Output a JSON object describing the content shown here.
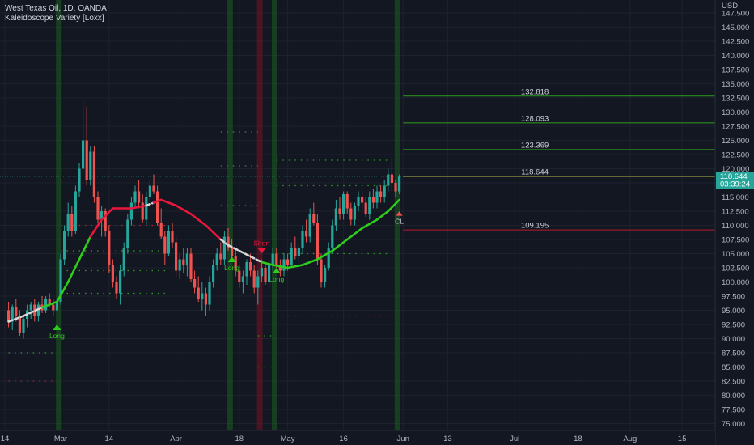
{
  "header": {
    "title": "West Texas Oil, 1D, OANDA",
    "indicator": "Kaleidoscope Variety [Loxx]"
  },
  "colors": {
    "background": "#131722",
    "up": "#26a69a",
    "down": "#ef5350",
    "ma_up": "#2ecc1b",
    "ma_down": "#e8173c",
    "ma_neutral": "#d9d9d9",
    "level_green": "#2e9e1f",
    "level_red": "#b71c2c",
    "band_green": "#1b5e20",
    "band_red": "#7a1325",
    "price_tag": "#26a69a"
  },
  "chart_data": {
    "type": "candlestick",
    "currency": "USD",
    "y_ticks": [
      "147.500",
      "145.000",
      "142.500",
      "140.000",
      "137.500",
      "135.000",
      "132.500",
      "130.000",
      "127.500",
      "125.000",
      "122.500",
      "120.000",
      "117.500",
      "115.000",
      "112.500",
      "110.000",
      "107.500",
      "105.000",
      "102.500",
      "100.000",
      "97.500",
      "95.000",
      "92.500",
      "90.000",
      "87.500",
      "85.000",
      "82.500",
      "80.000",
      "77.500",
      "75.000"
    ],
    "ylim": [
      73.5,
      149.5
    ],
    "x_ticks": [
      {
        "label": "14",
        "d": 0
      },
      {
        "label": "Mar",
        "d": 15
      },
      {
        "label": "14",
        "d": 28
      },
      {
        "label": "Apr",
        "d": 46
      },
      {
        "label": "18",
        "d": 63
      },
      {
        "label": "May",
        "d": 76
      },
      {
        "label": "16",
        "d": 91
      },
      {
        "label": "Jun",
        "d": 107
      },
      {
        "label": "13",
        "d": 119
      },
      {
        "label": "Jul",
        "d": 137
      },
      {
        "label": "18",
        "d": 154
      },
      {
        "label": "Aug",
        "d": 168
      },
      {
        "label": "15",
        "d": 182
      }
    ],
    "xlim": [
      0,
      190
    ],
    "candles": [
      [
        1,
        95,
        96.5,
        92,
        93
      ],
      [
        2,
        93,
        96,
        91.5,
        95.5
      ],
      [
        3,
        95.5,
        97,
        93,
        94
      ],
      [
        4,
        94,
        95,
        90.5,
        91
      ],
      [
        5,
        91,
        94,
        90,
        93.5
      ],
      [
        6,
        93.5,
        96,
        92,
        95
      ],
      [
        7,
        95,
        96.5,
        93.5,
        96
      ],
      [
        8,
        96,
        97,
        93,
        94
      ],
      [
        9,
        94,
        96.5,
        93,
        96
      ],
      [
        10,
        96,
        97.5,
        94.5,
        95
      ],
      [
        11,
        95,
        97.5,
        94.5,
        97
      ],
      [
        12,
        97,
        98,
        95.5,
        96
      ],
      [
        13,
        96,
        97,
        94,
        95
      ],
      [
        14,
        95,
        97,
        94.5,
        96.5
      ],
      [
        15,
        96.5,
        105,
        96,
        104
      ],
      [
        16,
        104,
        110,
        103,
        109
      ],
      [
        17,
        109,
        114,
        108,
        112
      ],
      [
        18,
        112,
        113.5,
        108,
        109
      ],
      [
        19,
        109,
        117,
        108.5,
        116
      ],
      [
        20,
        116,
        121,
        115,
        120
      ],
      [
        21,
        120,
        132,
        119,
        125
      ],
      [
        22,
        125,
        131,
        117,
        118
      ],
      [
        23,
        118,
        124,
        117,
        123
      ],
      [
        24,
        123,
        124,
        114,
        115
      ],
      [
        25,
        115,
        116,
        110.5,
        111
      ],
      [
        26,
        111,
        113.5,
        108,
        112.5
      ],
      [
        27,
        112.5,
        113,
        108,
        109
      ],
      [
        28,
        109,
        110,
        101.5,
        103
      ],
      [
        29,
        103,
        104,
        99,
        100
      ],
      [
        30,
        100,
        101,
        97,
        98
      ],
      [
        31,
        98,
        103,
        96,
        102
      ],
      [
        32,
        102,
        107,
        101,
        106
      ],
      [
        33,
        106,
        112,
        105,
        111
      ],
      [
        34,
        111,
        115,
        110,
        114
      ],
      [
        35,
        114,
        117,
        113,
        116
      ],
      [
        36,
        116,
        118,
        113,
        114
      ],
      [
        37,
        114,
        115.5,
        110.5,
        111
      ],
      [
        38,
        111,
        116,
        110,
        115
      ],
      [
        39,
        115,
        118,
        114,
        117
      ],
      [
        40,
        117,
        119,
        115.5,
        116
      ],
      [
        41,
        116,
        117,
        110,
        110.5
      ],
      [
        42,
        110.5,
        113,
        107.5,
        108
      ],
      [
        43,
        108,
        109,
        103,
        105
      ],
      [
        44,
        105,
        110,
        104.5,
        109
      ],
      [
        45,
        109,
        110.5,
        106,
        107
      ],
      [
        46,
        107,
        108,
        101,
        102
      ],
      [
        47,
        102,
        105,
        100.5,
        104
      ],
      [
        48,
        104,
        106,
        101.5,
        103
      ],
      [
        49,
        103,
        106,
        101,
        105
      ],
      [
        50,
        105,
        106,
        100,
        100.5
      ],
      [
        51,
        100.5,
        102,
        98,
        99
      ],
      [
        52,
        99,
        101,
        96.5,
        97
      ],
      [
        53,
        97,
        100,
        95,
        98
      ],
      [
        54,
        98,
        99,
        94,
        96
      ],
      [
        55,
        96,
        101,
        95,
        100
      ],
      [
        56,
        100,
        104,
        99,
        103
      ],
      [
        57,
        103,
        106,
        102,
        105
      ],
      [
        58,
        105,
        107,
        103,
        104
      ],
      [
        59,
        104,
        109,
        103,
        108
      ],
      [
        60,
        108,
        109.5,
        105.5,
        106
      ],
      [
        61,
        106,
        107.5,
        104,
        104.5
      ],
      [
        62,
        104.5,
        106,
        101,
        102
      ],
      [
        63,
        102,
        103,
        99,
        100
      ],
      [
        64,
        100,
        102,
        98,
        101
      ],
      [
        65,
        101,
        104,
        99.5,
        103.5
      ],
      [
        66,
        103.5,
        105,
        101,
        102
      ],
      [
        67,
        102,
        103,
        98,
        99
      ],
      [
        68,
        99,
        102,
        96,
        101
      ],
      [
        69,
        101,
        104,
        100,
        102.5
      ],
      [
        70,
        102.5,
        103.5,
        99.5,
        100
      ],
      [
        71,
        100,
        104,
        99,
        103
      ],
      [
        72,
        103,
        106,
        102,
        105
      ],
      [
        73,
        105,
        106,
        102.5,
        103
      ],
      [
        74,
        103,
        104,
        101,
        102
      ],
      [
        75,
        102,
        105,
        101,
        104
      ],
      [
        76,
        104,
        105,
        102,
        103
      ],
      [
        77,
        103,
        107,
        102.5,
        106
      ],
      [
        78,
        106,
        108,
        104,
        104.5
      ],
      [
        79,
        104.5,
        107,
        103.5,
        106
      ],
      [
        80,
        106,
        110,
        105,
        109
      ],
      [
        81,
        109,
        111,
        107,
        108
      ],
      [
        82,
        108,
        113,
        107,
        112
      ],
      [
        83,
        112,
        114,
        110,
        110.5
      ],
      [
        84,
        110.5,
        112,
        103,
        104
      ],
      [
        85,
        104,
        105,
        99,
        100
      ],
      [
        86,
        100,
        103,
        99,
        102.5
      ],
      [
        87,
        102.5,
        107,
        102,
        106
      ],
      [
        88,
        106,
        111,
        105,
        110
      ],
      [
        89,
        110,
        114.5,
        109,
        113
      ],
      [
        90,
        113,
        115,
        111,
        112
      ],
      [
        91,
        112,
        116,
        111,
        115.5
      ],
      [
        92,
        115.5,
        116,
        112,
        113
      ],
      [
        93,
        113,
        114,
        110,
        111
      ],
      [
        94,
        111,
        114,
        110,
        113.5
      ],
      [
        95,
        113.5,
        116,
        112.5,
        115
      ],
      [
        96,
        115,
        116,
        113,
        114
      ],
      [
        97,
        114,
        115,
        111.5,
        112
      ],
      [
        98,
        112,
        116,
        111,
        115
      ],
      [
        99,
        115,
        116.5,
        113,
        114
      ],
      [
        100,
        114,
        117,
        113,
        116
      ],
      [
        101,
        116,
        117,
        114,
        115
      ],
      [
        102,
        115,
        118,
        114,
        117
      ],
      [
        103,
        117,
        120,
        116,
        119
      ],
      [
        104,
        119,
        122,
        116,
        117.5
      ],
      [
        105,
        117.5,
        118,
        115,
        116
      ],
      [
        106,
        116,
        119,
        115.5,
        118.6
      ]
    ],
    "ma": [
      [
        1,
        93,
        "n"
      ],
      [
        5,
        94,
        "n"
      ],
      [
        10,
        95.5,
        "n"
      ],
      [
        14,
        96.5,
        "u"
      ],
      [
        17,
        100,
        "u"
      ],
      [
        20,
        104,
        "u"
      ],
      [
        23,
        108,
        "u"
      ],
      [
        26,
        111,
        "d"
      ],
      [
        29,
        113,
        "d"
      ],
      [
        34,
        113,
        "d"
      ],
      [
        38,
        113.5,
        "d"
      ],
      [
        40,
        114,
        "n"
      ],
      [
        42,
        114.5,
        "d"
      ],
      [
        46,
        113.5,
        "d"
      ],
      [
        50,
        112,
        "d"
      ],
      [
        54,
        110,
        "d"
      ],
      [
        58,
        107.5,
        "d"
      ],
      [
        60,
        106.5,
        "n"
      ],
      [
        63,
        105.5,
        "n"
      ],
      [
        66,
        104.5,
        "n"
      ],
      [
        69,
        103.5,
        "n"
      ],
      [
        72,
        103,
        "u"
      ],
      [
        76,
        102.5,
        "u"
      ],
      [
        80,
        103,
        "u"
      ],
      [
        84,
        104,
        "u"
      ],
      [
        88,
        105.5,
        "u"
      ],
      [
        92,
        107.5,
        "u"
      ],
      [
        96,
        109.5,
        "u"
      ],
      [
        100,
        111,
        "u"
      ],
      [
        103,
        112.5,
        "u"
      ],
      [
        106,
        114.5,
        "u"
      ]
    ],
    "last_price": "118.644",
    "countdown": "03:39:24",
    "signals": [
      {
        "label": "Long",
        "d": 14,
        "price": 92.5,
        "dir": "up"
      },
      {
        "label": "Long",
        "d": 61,
        "price": 104.5,
        "dir": "up"
      },
      {
        "label": "Short",
        "d": 69,
        "price": 106,
        "dir": "down"
      },
      {
        "label": "Long",
        "d": 73,
        "price": 102.5,
        "dir": "up"
      },
      {
        "label": "CL",
        "d": 106,
        "price": 112.5,
        "dir": "up"
      }
    ],
    "levels": [
      {
        "label": "132.818",
        "value": 132.818,
        "color": "green"
      },
      {
        "label": "128.093",
        "value": 128.093,
        "color": "green"
      },
      {
        "label": "123.369",
        "value": 123.369,
        "color": "green"
      },
      {
        "label": "118.644",
        "value": 118.644,
        "color": "yellow"
      },
      {
        "label": "109.195",
        "value": 109.195,
        "color": "red"
      }
    ],
    "bands": [
      {
        "d": 14.5,
        "color": "green"
      },
      {
        "d": 60.5,
        "color": "green"
      },
      {
        "d": 68.5,
        "color": "red"
      },
      {
        "d": 72.5,
        "color": "green"
      },
      {
        "d": 105.5,
        "color": "green"
      }
    ],
    "dotted_levels": [
      {
        "from": 1,
        "to": 14,
        "value": 87.5,
        "color": "green"
      },
      {
        "from": 1,
        "to": 14,
        "value": 82.5,
        "color": "red"
      },
      {
        "from": 15,
        "to": 44,
        "value": 98,
        "color": "green"
      },
      {
        "from": 15,
        "to": 44,
        "value": 102,
        "color": "green"
      },
      {
        "from": 15,
        "to": 44,
        "value": 105.5,
        "color": "green"
      },
      {
        "from": 15,
        "to": 44,
        "value": 110,
        "color": "red"
      },
      {
        "from": 58,
        "to": 68,
        "value": 126.5,
        "color": "green"
      },
      {
        "from": 58,
        "to": 68,
        "value": 120.5,
        "color": "green"
      },
      {
        "from": 58,
        "to": 68,
        "value": 113.5,
        "color": "green"
      },
      {
        "from": 68,
        "to": 72,
        "value": 90.5,
        "color": "green"
      },
      {
        "from": 68,
        "to": 72,
        "value": 85,
        "color": "green"
      },
      {
        "from": 73,
        "to": 104,
        "value": 121.5,
        "color": "green"
      },
      {
        "from": 73,
        "to": 104,
        "value": 117,
        "color": "green"
      },
      {
        "from": 73,
        "to": 104,
        "value": 105,
        "color": "green"
      },
      {
        "from": 73,
        "to": 104,
        "value": 94,
        "color": "red"
      }
    ]
  }
}
